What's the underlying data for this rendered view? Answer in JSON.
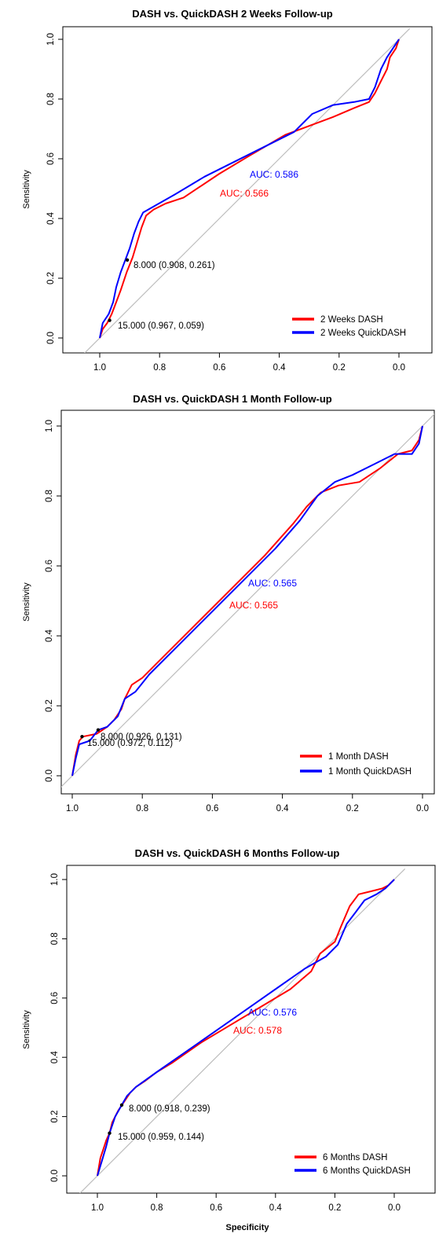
{
  "colors": {
    "dash": "#ff0000",
    "quickdash": "#0000ff",
    "diagonal": "#bdbdbd",
    "axis": "#000000"
  },
  "chart_data": [
    {
      "type": "line",
      "title": "DASH vs. QuickDASH 2 Weeks Follow-up",
      "xlabel": "",
      "ylabel": "Sensitivity",
      "xlim": [
        1.0,
        0.0
      ],
      "ylim": [
        0.0,
        1.0
      ],
      "x_reversed": true,
      "x_ticks": [
        "1.0",
        "0.8",
        "0.6",
        "0.4",
        "0.2",
        "0.0"
      ],
      "y_ticks": [
        "0.0",
        "0.2",
        "0.4",
        "0.6",
        "0.8",
        "1.0"
      ],
      "legend_position": "bottom-right",
      "series": [
        {
          "name": "2 Weeks DASH",
          "auc_label": "AUC: 0.566",
          "points": [
            [
              1.0,
              0.0
            ],
            [
              0.99,
              0.03
            ],
            [
              0.975,
              0.05
            ],
            [
              0.96,
              0.08
            ],
            [
              0.945,
              0.12
            ],
            [
              0.93,
              0.16
            ],
            [
              0.91,
              0.22
            ],
            [
              0.89,
              0.27
            ],
            [
              0.875,
              0.32
            ],
            [
              0.86,
              0.37
            ],
            [
              0.845,
              0.41
            ],
            [
              0.82,
              0.43
            ],
            [
              0.78,
              0.45
            ],
            [
              0.72,
              0.47
            ],
            [
              0.6,
              0.55
            ],
            [
              0.5,
              0.61
            ],
            [
              0.38,
              0.68
            ],
            [
              0.3,
              0.71
            ],
            [
              0.22,
              0.74
            ],
            [
              0.15,
              0.77
            ],
            [
              0.1,
              0.79
            ],
            [
              0.08,
              0.82
            ],
            [
              0.06,
              0.86
            ],
            [
              0.04,
              0.9
            ],
            [
              0.03,
              0.94
            ],
            [
              0.01,
              0.97
            ],
            [
              0.0,
              1.0
            ]
          ]
        },
        {
          "name": "2 Weeks QuickDASH",
          "auc_label": "AUC: 0.586",
          "points": [
            [
              1.0,
              0.0
            ],
            [
              0.99,
              0.05
            ],
            [
              0.97,
              0.08
            ],
            [
              0.955,
              0.12
            ],
            [
              0.945,
              0.17
            ],
            [
              0.93,
              0.22
            ],
            [
              0.915,
              0.26
            ],
            [
              0.9,
              0.3
            ],
            [
              0.885,
              0.35
            ],
            [
              0.87,
              0.39
            ],
            [
              0.855,
              0.42
            ],
            [
              0.82,
              0.44
            ],
            [
              0.75,
              0.48
            ],
            [
              0.65,
              0.54
            ],
            [
              0.55,
              0.59
            ],
            [
              0.45,
              0.64
            ],
            [
              0.35,
              0.69
            ],
            [
              0.29,
              0.75
            ],
            [
              0.22,
              0.78
            ],
            [
              0.15,
              0.79
            ],
            [
              0.1,
              0.8
            ],
            [
              0.08,
              0.84
            ],
            [
              0.06,
              0.9
            ],
            [
              0.04,
              0.94
            ],
            [
              0.02,
              0.97
            ],
            [
              0.0,
              1.0
            ]
          ]
        }
      ],
      "thresholds": [
        {
          "label": "8.000 (0.908, 0.261)",
          "x": 0.908,
          "y": 0.261
        },
        {
          "label": "15.000 (0.967, 0.059)",
          "x": 0.967,
          "y": 0.059
        }
      ]
    },
    {
      "type": "line",
      "title": "DASH vs. QuickDASH 1 Month Follow-up",
      "xlabel": "",
      "ylabel": "Sensitivity",
      "xlim": [
        1.0,
        0.0
      ],
      "ylim": [
        0.0,
        1.0
      ],
      "x_reversed": true,
      "x_ticks": [
        "1.0",
        "0.8",
        "0.6",
        "0.4",
        "0.2",
        "0.0"
      ],
      "y_ticks": [
        "0.0",
        "0.2",
        "0.4",
        "0.6",
        "0.8",
        "1.0"
      ],
      "legend_position": "bottom-right",
      "series": [
        {
          "name": "1 Month DASH",
          "auc_label": "AUC: 0.565",
          "points": [
            [
              1.0,
              0.0
            ],
            [
              0.99,
              0.06
            ],
            [
              0.98,
              0.1
            ],
            [
              0.97,
              0.112
            ],
            [
              0.93,
              0.12
            ],
            [
              0.9,
              0.14
            ],
            [
              0.88,
              0.16
            ],
            [
              0.86,
              0.19
            ],
            [
              0.85,
              0.22
            ],
            [
              0.83,
              0.26
            ],
            [
              0.8,
              0.28
            ],
            [
              0.76,
              0.32
            ],
            [
              0.65,
              0.43
            ],
            [
              0.55,
              0.53
            ],
            [
              0.45,
              0.63
            ],
            [
              0.37,
              0.72
            ],
            [
              0.33,
              0.77
            ],
            [
              0.29,
              0.81
            ],
            [
              0.24,
              0.83
            ],
            [
              0.18,
              0.84
            ],
            [
              0.12,
              0.88
            ],
            [
              0.07,
              0.92
            ],
            [
              0.03,
              0.93
            ],
            [
              0.01,
              0.96
            ],
            [
              0.0,
              1.0
            ]
          ]
        },
        {
          "name": "1 Month QuickDASH",
          "auc_label": "AUC: 0.565",
          "points": [
            [
              1.0,
              0.0
            ],
            [
              0.99,
              0.05
            ],
            [
              0.98,
              0.09
            ],
            [
              0.95,
              0.1
            ],
            [
              0.926,
              0.131
            ],
            [
              0.9,
              0.14
            ],
            [
              0.87,
              0.17
            ],
            [
              0.85,
              0.22
            ],
            [
              0.82,
              0.24
            ],
            [
              0.78,
              0.29
            ],
            [
              0.7,
              0.37
            ],
            [
              0.6,
              0.47
            ],
            [
              0.5,
              0.57
            ],
            [
              0.42,
              0.65
            ],
            [
              0.35,
              0.73
            ],
            [
              0.3,
              0.8
            ],
            [
              0.25,
              0.84
            ],
            [
              0.2,
              0.86
            ],
            [
              0.14,
              0.89
            ],
            [
              0.08,
              0.92
            ],
            [
              0.03,
              0.92
            ],
            [
              0.01,
              0.95
            ],
            [
              0.0,
              1.0
            ]
          ]
        }
      ],
      "thresholds": [
        {
          "label": "8.000 (0.926, 0.131)",
          "x": 0.926,
          "y": 0.131
        },
        {
          "label": "15.000 (0.972, 0.112)",
          "x": 0.972,
          "y": 0.112
        }
      ]
    },
    {
      "type": "line",
      "title": "DASH vs. QuickDASH 6 Months Follow-up",
      "xlabel": "Specificity",
      "ylabel": "Sensitivity",
      "xlim": [
        1.0,
        0.0
      ],
      "ylim": [
        0.0,
        1.0
      ],
      "x_reversed": true,
      "x_ticks": [
        "1.0",
        "0.8",
        "0.6",
        "0.4",
        "0.2",
        "0.0"
      ],
      "y_ticks": [
        "0.0",
        "0.2",
        "0.4",
        "0.6",
        "0.8",
        "1.0"
      ],
      "legend_position": "bottom-right",
      "series": [
        {
          "name": "6 Months DASH",
          "auc_label": "AUC: 0.578",
          "points": [
            [
              1.0,
              0.0
            ],
            [
              0.99,
              0.06
            ],
            [
              0.98,
              0.09
            ],
            [
              0.97,
              0.12
            ],
            [
              0.959,
              0.144
            ],
            [
              0.95,
              0.18
            ],
            [
              0.93,
              0.22
            ],
            [
              0.91,
              0.25
            ],
            [
              0.89,
              0.28
            ],
            [
              0.87,
              0.3
            ],
            [
              0.84,
              0.32
            ],
            [
              0.8,
              0.35
            ],
            [
              0.75,
              0.38
            ],
            [
              0.65,
              0.45
            ],
            [
              0.55,
              0.51
            ],
            [
              0.45,
              0.57
            ],
            [
              0.35,
              0.63
            ],
            [
              0.28,
              0.69
            ],
            [
              0.25,
              0.75
            ],
            [
              0.2,
              0.79
            ],
            [
              0.18,
              0.84
            ],
            [
              0.15,
              0.91
            ],
            [
              0.12,
              0.95
            ],
            [
              0.08,
              0.96
            ],
            [
              0.04,
              0.97
            ],
            [
              0.02,
              0.98
            ],
            [
              0.0,
              1.0
            ]
          ]
        },
        {
          "name": "6 Months QuickDASH",
          "auc_label": "AUC: 0.576",
          "points": [
            [
              1.0,
              0.0
            ],
            [
              0.985,
              0.05
            ],
            [
              0.97,
              0.1
            ],
            [
              0.959,
              0.144
            ],
            [
              0.94,
              0.2
            ],
            [
              0.918,
              0.239
            ],
            [
              0.9,
              0.27
            ],
            [
              0.87,
              0.3
            ],
            [
              0.8,
              0.35
            ],
            [
              0.7,
              0.42
            ],
            [
              0.6,
              0.49
            ],
            [
              0.5,
              0.56
            ],
            [
              0.4,
              0.63
            ],
            [
              0.3,
              0.7
            ],
            [
              0.23,
              0.74
            ],
            [
              0.19,
              0.78
            ],
            [
              0.16,
              0.85
            ],
            [
              0.13,
              0.89
            ],
            [
              0.1,
              0.93
            ],
            [
              0.06,
              0.95
            ],
            [
              0.03,
              0.97
            ],
            [
              0.01,
              0.99
            ],
            [
              0.0,
              1.0
            ]
          ]
        }
      ],
      "thresholds": [
        {
          "label": "8.000 (0.918, 0.239)",
          "x": 0.918,
          "y": 0.239
        },
        {
          "label": "15.000 (0.959, 0.144)",
          "x": 0.959,
          "y": 0.144
        }
      ]
    }
  ]
}
